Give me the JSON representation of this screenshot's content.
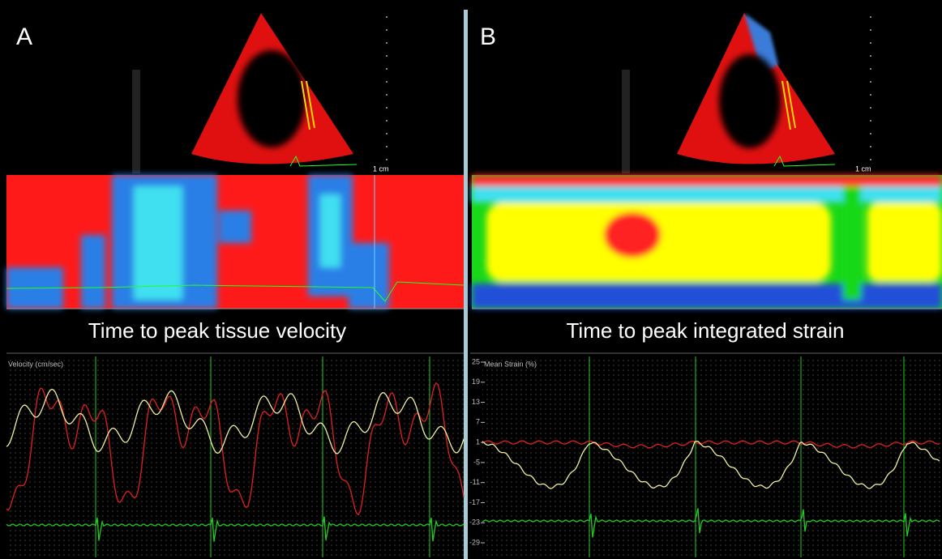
{
  "panels": [
    {
      "label": "A",
      "caption": "Time to peak tissue velocity",
      "scale_label": "1 cm",
      "graph_title": "Velocity (cm/sec)"
    },
    {
      "label": "B",
      "caption": "Time to peak integrated strain",
      "scale_label": "1 cm",
      "graph_title": "Mean Strain (%)",
      "yticks": [
        25,
        19,
        13,
        7,
        1,
        -5,
        -11,
        -17,
        -23,
        -29
      ]
    }
  ]
}
